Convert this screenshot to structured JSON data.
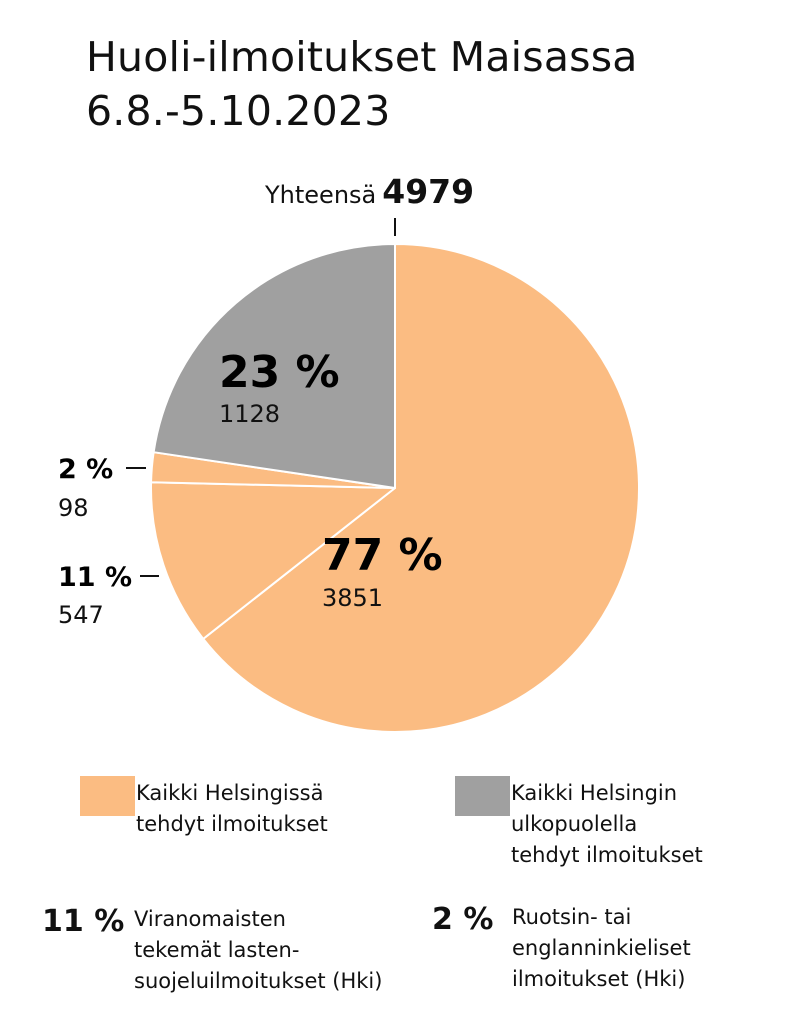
{
  "title_line1": "Huoli-ilmoitukset Maisassa",
  "title_line2": "6.8.-5.10.2023",
  "total": {
    "label": "Yhteensä",
    "value": "4979"
  },
  "colors": {
    "helsinki": "#FBBC82",
    "outside": "#A0A0A0",
    "separator": "#FFFFFF"
  },
  "chart_data": {
    "type": "pie",
    "title": "Huoli-ilmoitukset Maisassa 6.8.-5.10.2023",
    "total": 4979,
    "slices": [
      {
        "label": "Kaikki Helsingissä tehdyt ilmoitukset",
        "value": 3851,
        "percent": "77 %",
        "color": "#FBBC82",
        "sub_slices": [
          {
            "label": "Viranomaisten tekemät lastensuojeluilmoitukset (Hki)",
            "value": 547,
            "percent": "11 %"
          },
          {
            "label": "Ruotsin- tai englanninkieliset ilmoitukset (Hki)",
            "value": 98,
            "percent": "2 %"
          }
        ]
      },
      {
        "label": "Kaikki Helsingin ulkopuolella tehdyt ilmoitukset",
        "value": 1128,
        "percent": "23 %",
        "color": "#A0A0A0"
      }
    ]
  },
  "labels": {
    "helsinki_pct": "77 %",
    "helsinki_count": "3851",
    "outside_pct": "23 %",
    "outside_count": "1128",
    "official_pct": "11 %",
    "official_count": "547",
    "language_pct": "2 %",
    "language_count": "98"
  },
  "legend": [
    {
      "text": "Kaikki Helsingissä\ntehdyt ilmoitukset",
      "color": "#FBBC82"
    },
    {
      "text": "Kaikki Helsingin\nulkopuolella\ntehdyt ilmoitukset",
      "color": "#A0A0A0"
    }
  ],
  "notes": [
    {
      "pct": "11 %",
      "text": "Viranomaisten\ntekemät lasten-\nsuojeluilmoitukset (Hki)"
    },
    {
      "pct": "2 %",
      "text": "Ruotsin- tai\nenglanninkieliset\nilmoitukset (Hki)"
    }
  ]
}
